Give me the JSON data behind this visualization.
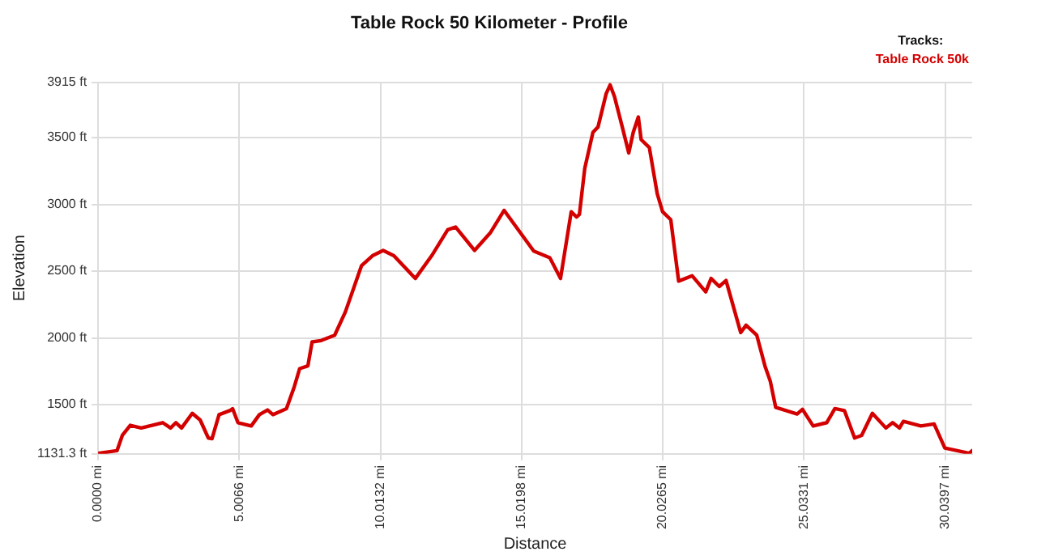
{
  "chart_data": {
    "type": "line",
    "title": "Table Rock 50 Kilometer - Profile",
    "xlabel": "Distance",
    "ylabel": "Elevation",
    "legend_title": "Tracks:",
    "legend": "top right",
    "grid": true,
    "marker": "none",
    "line_style": "solid",
    "xlim": [
      0,
      31
    ],
    "xticks": [
      {
        "value": 0,
        "label": "0.0000 mi"
      },
      {
        "value": 5.0066,
        "label": "5.0066 mi"
      },
      {
        "value": 10.0132,
        "label": "10.0132 mi"
      },
      {
        "value": 15.0198,
        "label": "15.0198 mi"
      },
      {
        "value": 20.0265,
        "label": "20.0265 mi"
      },
      {
        "value": 25.0331,
        "label": "25.0331 mi"
      },
      {
        "value": 30.0397,
        "label": "30.0397 mi"
      }
    ],
    "ylim": [
      1131.3,
      3915
    ],
    "yticks": [
      {
        "value": 1131.3,
        "label": "1131.3 ft"
      },
      {
        "value": 1500,
        "label": "1500 ft"
      },
      {
        "value": 2000,
        "label": "2000 ft"
      },
      {
        "value": 2500,
        "label": "2500 ft"
      },
      {
        "value": 3000,
        "label": "3000 ft"
      },
      {
        "value": 3500,
        "label": "3500 ft"
      },
      {
        "value": 3915,
        "label": "3915 ft"
      }
    ],
    "series": [
      {
        "name": "Table Rock 50k",
        "color": "#d40000",
        "x": [
          0,
          0.67,
          0.86,
          1.14,
          1.53,
          2.29,
          2.57,
          2.76,
          2.96,
          3.34,
          3.62,
          3.91,
          4.04,
          4.29,
          4.67,
          4.77,
          4.96,
          5.43,
          5.72,
          6.01,
          6.2,
          6.68,
          6.96,
          7.15,
          7.44,
          7.59,
          7.91,
          8.39,
          8.77,
          9.34,
          9.73,
          10.11,
          10.49,
          11.25,
          11.83,
          12.4,
          12.68,
          13.35,
          13.92,
          14.4,
          15.45,
          16.02,
          16.4,
          16.78,
          16.97,
          17.07,
          17.26,
          17.55,
          17.73,
          18.02,
          18.16,
          18.31,
          18.59,
          18.82,
          18.98,
          19.16,
          19.26,
          19.55,
          19.83,
          20.02,
          20.31,
          20.59,
          21.07,
          21.55,
          21.74,
          22.03,
          22.27,
          22.79,
          22.98,
          23.36,
          23.65,
          23.84,
          24.03,
          24.79,
          24.98,
          25.36,
          25.84,
          26.13,
          26.47,
          26.83,
          27.08,
          27.46,
          27.94,
          28.18,
          28.42,
          28.56,
          29.18,
          29.65,
          30.03,
          30.7,
          30.89,
          31
        ],
        "values": [
          1135,
          1155,
          1270,
          1345,
          1325,
          1365,
          1325,
          1365,
          1325,
          1435,
          1385,
          1250,
          1245,
          1425,
          1455,
          1470,
          1365,
          1340,
          1425,
          1460,
          1425,
          1470,
          1635,
          1770,
          1790,
          1970,
          1980,
          2020,
          2195,
          2540,
          2615,
          2655,
          2615,
          2445,
          2615,
          2810,
          2830,
          2655,
          2790,
          2955,
          2650,
          2600,
          2445,
          2945,
          2905,
          2925,
          3270,
          3540,
          3580,
          3830,
          3895,
          3810,
          3580,
          3385,
          3540,
          3655,
          3485,
          3425,
          3080,
          2945,
          2885,
          2425,
          2465,
          2345,
          2445,
          2385,
          2430,
          2040,
          2095,
          2020,
          1790,
          1675,
          1480,
          1430,
          1465,
          1340,
          1365,
          1470,
          1455,
          1250,
          1270,
          1435,
          1325,
          1365,
          1325,
          1375,
          1340,
          1355,
          1175,
          1145,
          1135,
          1155
        ]
      }
    ]
  }
}
